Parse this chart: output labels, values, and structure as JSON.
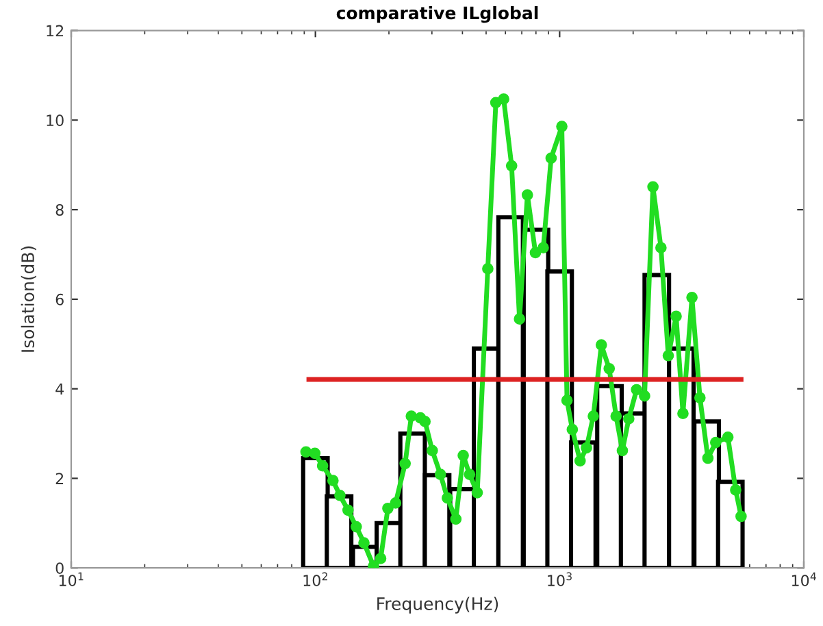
{
  "chart_data": {
    "type": "bar",
    "title": "comparative ILglobal",
    "xlabel": "Frequency(Hz)",
    "ylabel": "Isolation(dB)",
    "log": "x",
    "xlim": [
      10,
      10000
    ],
    "ylim": [
      0,
      12
    ],
    "xticks": [
      {
        "value": 10,
        "label": "10$^{1}$"
      },
      {
        "value": 100,
        "label": "10$^{2}$"
      },
      {
        "value": 1000,
        "label": "10$^{3}$"
      },
      {
        "value": 10000,
        "label": "10$^{4}$"
      }
    ],
    "yticks": [
      0,
      2,
      4,
      6,
      8,
      10,
      12
    ],
    "grid": false,
    "legend": false,
    "series": [
      {
        "color": "#000000",
        "x": [
          100,
          125,
          160,
          200,
          250,
          315,
          400,
          500,
          630,
          800,
          1000,
          1250,
          1600,
          2000,
          2500,
          3150,
          4000,
          5000
        ],
        "values": [
          2.45,
          1.6,
          0.47,
          1.0,
          3.0,
          2.07,
          1.76,
          4.9,
          7.83,
          7.55,
          6.62,
          2.8,
          4.06,
          3.45,
          6.54,
          4.9,
          3.27,
          1.92
        ]
      },
      {
        "type": "line",
        "color": "#22dd22",
        "marker": "circle",
        "line_style": "solid",
        "x": [
          91.5,
          99.5,
          107,
          118,
          126,
          136,
          147,
          158,
          173,
          185,
          198,
          213,
          233,
          247,
          269,
          281,
          301,
          325,
          347,
          376,
          403,
          428,
          460,
          508,
          548,
          590,
          636,
          685,
          738,
          796,
          857,
          923,
          1021,
          1072,
          1127,
          1213,
          1288,
          1374,
          1482,
          1596,
          1703,
          1807,
          1919,
          2066,
          2228,
          2411,
          2600,
          2786,
          3000,
          3199,
          3483,
          3755,
          4047,
          4357,
          4887,
          5260,
          5534
        ],
        "values": [
          2.59,
          2.56,
          2.28,
          1.95,
          1.62,
          1.29,
          0.92,
          0.56,
          0.04,
          0.21,
          1.33,
          1.45,
          2.33,
          3.39,
          3.35,
          3.27,
          2.62,
          2.09,
          1.56,
          1.09,
          2.51,
          2.09,
          1.68,
          6.68,
          10.39,
          10.47,
          8.98,
          5.56,
          8.33,
          7.04,
          7.15,
          9.15,
          9.86,
          3.74,
          3.09,
          2.39,
          2.68,
          3.39,
          4.98,
          4.45,
          3.39,
          2.62,
          3.33,
          3.98,
          3.84,
          8.51,
          7.15,
          4.74,
          5.62,
          3.45,
          6.04,
          3.8,
          2.45,
          2.8,
          2.92,
          1.74,
          1.15
        ]
      },
      {
        "type": "line",
        "color": "#dd2222",
        "marker": "none",
        "line_style": "solid",
        "x": [
          94,
          5534
        ],
        "values": [
          4.21,
          4.21
        ]
      }
    ]
  }
}
